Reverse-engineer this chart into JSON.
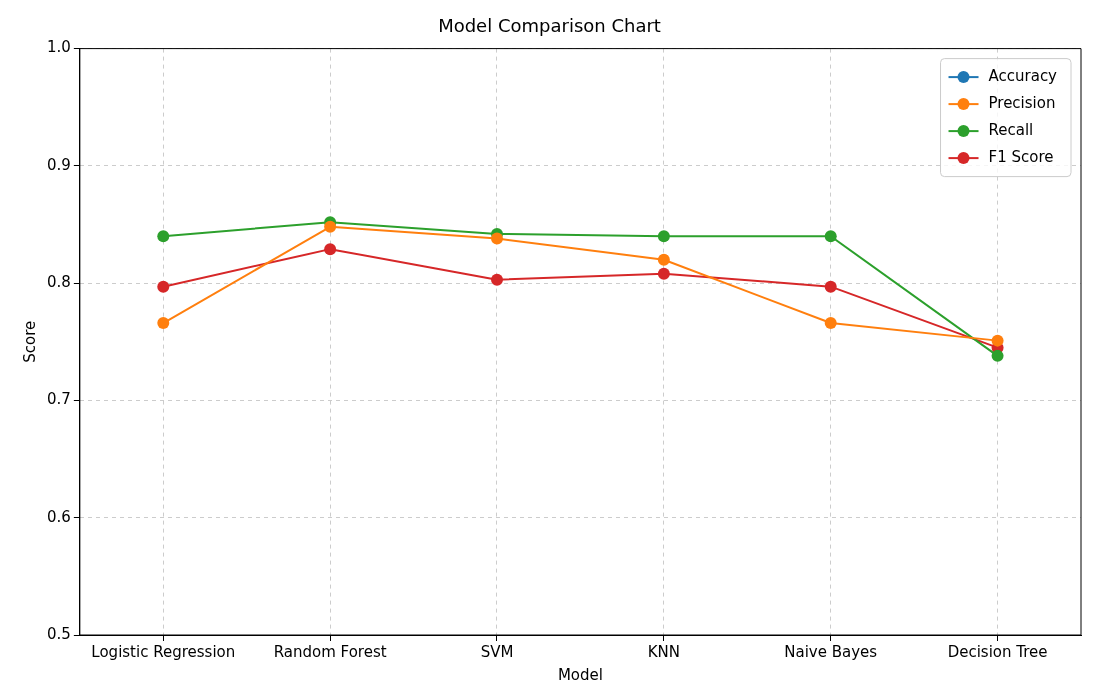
{
  "chart_data": {
    "type": "line",
    "title": "Model Comparison Chart",
    "xlabel": "Model",
    "ylabel": "Score",
    "categories": [
      "Logistic Regression",
      "Random Forest",
      "SVM",
      "KNN",
      "Naive Bayes",
      "Decision Tree"
    ],
    "series": [
      {
        "name": "Accuracy",
        "color": "#1f77b4",
        "values": [
          null,
          null,
          null,
          null,
          null,
          null
        ]
      },
      {
        "name": "Precision",
        "color": "#ff7f0e",
        "values": [
          0.766,
          0.848,
          0.838,
          0.82,
          0.766,
          0.751
        ]
      },
      {
        "name": "Recall",
        "color": "#2ca02c",
        "values": [
          0.84,
          0.852,
          0.842,
          0.84,
          0.84,
          0.738
        ]
      },
      {
        "name": "F1 Score",
        "color": "#d62728",
        "values": [
          0.797,
          0.829,
          0.803,
          0.808,
          0.797,
          0.745
        ]
      }
    ],
    "ylim": [
      0.5,
      1.0
    ],
    "yticks": [
      0.5,
      0.6,
      0.7,
      0.8,
      0.9,
      {
        "value": 1,
        "label": "1.0"
      }
    ],
    "grid": true,
    "legend": "top right",
    "marker": "circle",
    "line_style": "solid"
  }
}
